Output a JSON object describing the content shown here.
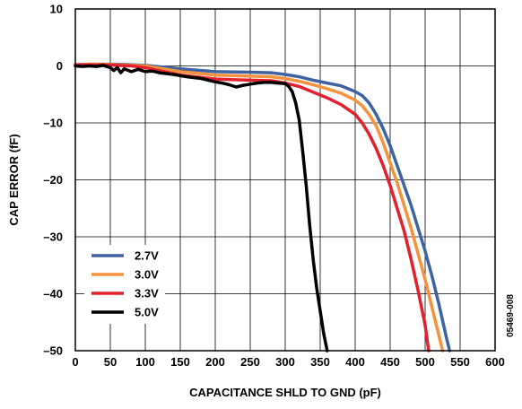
{
  "chart_data": {
    "type": "line",
    "title": "",
    "xlabel": "CAPACITANCE SHLD TO GND (pF)",
    "ylabel": "CAP ERROR (fF)",
    "xlim": [
      0,
      600
    ],
    "ylim": [
      -50,
      10
    ],
    "xticks": [
      0,
      50,
      100,
      150,
      200,
      250,
      300,
      350,
      400,
      450,
      500,
      550,
      600
    ],
    "yticks": [
      10,
      0,
      -10,
      -20,
      -30,
      -40,
      -50
    ],
    "ytick_labels": [
      "10",
      "0",
      "–10",
      "–20",
      "–30",
      "–40",
      "–50"
    ],
    "grid": true,
    "legend_position": "lower-left",
    "side_note": "05469-008",
    "series": [
      {
        "name": "2.7V",
        "color": "#3f63a0",
        "x": [
          0,
          20,
          40,
          60,
          80,
          100,
          150,
          200,
          250,
          280,
          300,
          320,
          340,
          360,
          380,
          400,
          410,
          420,
          430,
          440,
          450,
          460,
          470,
          480,
          490,
          500,
          510,
          520,
          530,
          535
        ],
        "y": [
          0.2,
          0.3,
          0.3,
          0.3,
          0.2,
          0.1,
          -0.5,
          -1.0,
          -1.1,
          -1.2,
          -1.5,
          -1.9,
          -2.5,
          -3.0,
          -3.5,
          -4.5,
          -5.2,
          -6.5,
          -8.5,
          -11.0,
          -14.0,
          -17.5,
          -21.0,
          -24.5,
          -28.5,
          -32.5,
          -37.0,
          -42.0,
          -47.5,
          -50
        ]
      },
      {
        "name": "3.0V",
        "color": "#f5923e",
        "x": [
          0,
          20,
          40,
          60,
          80,
          100,
          150,
          200,
          250,
          280,
          300,
          320,
          340,
          360,
          380,
          400,
          410,
          420,
          430,
          440,
          450,
          460,
          470,
          480,
          490,
          500,
          510,
          520,
          525
        ],
        "y": [
          0.2,
          0.3,
          0.3,
          0.2,
          0.1,
          0.0,
          -1.0,
          -1.6,
          -1.8,
          -1.9,
          -2.2,
          -2.7,
          -3.3,
          -4.0,
          -4.8,
          -6.0,
          -7.0,
          -8.5,
          -10.5,
          -13.5,
          -17.0,
          -20.5,
          -24.5,
          -28.5,
          -33.0,
          -37.5,
          -42.5,
          -47.5,
          -50
        ]
      },
      {
        "name": "3.3V",
        "color": "#e3202e",
        "x": [
          0,
          20,
          40,
          60,
          80,
          100,
          150,
          200,
          250,
          280,
          300,
          320,
          340,
          360,
          380,
          400,
          410,
          420,
          430,
          440,
          450,
          460,
          470,
          480,
          490,
          500,
          505
        ],
        "y": [
          0.2,
          0.2,
          0.2,
          0.1,
          0.0,
          -0.3,
          -1.6,
          -2.3,
          -2.5,
          -2.6,
          -3.0,
          -3.6,
          -4.6,
          -5.6,
          -6.8,
          -8.5,
          -10.0,
          -12.0,
          -14.5,
          -17.5,
          -21.0,
          -25.0,
          -29.0,
          -34.0,
          -39.5,
          -45.5,
          -50
        ]
      },
      {
        "name": "5.0V",
        "color": "#000000",
        "x": [
          0,
          10,
          20,
          30,
          40,
          50,
          55,
          60,
          65,
          70,
          80,
          90,
          100,
          110,
          120,
          140,
          160,
          180,
          200,
          210,
          220,
          230,
          240,
          250,
          260,
          270,
          280,
          290,
          300,
          305,
          310,
          315,
          320,
          325,
          330,
          335,
          340,
          345,
          350,
          355,
          360
        ],
        "y": [
          0.0,
          -0.1,
          0.0,
          -0.1,
          0.1,
          -0.3,
          -0.8,
          -0.3,
          -1.2,
          -0.5,
          -1.0,
          -0.6,
          -1.0,
          -0.9,
          -1.2,
          -1.5,
          -1.9,
          -2.2,
          -2.8,
          -3.0,
          -3.3,
          -3.7,
          -3.4,
          -3.2,
          -3.0,
          -2.9,
          -2.9,
          -3.0,
          -3.1,
          -3.6,
          -4.5,
          -6.5,
          -9.5,
          -15.0,
          -21.0,
          -28.0,
          -34.0,
          -39.0,
          -43.0,
          -47.0,
          -50
        ]
      }
    ]
  }
}
